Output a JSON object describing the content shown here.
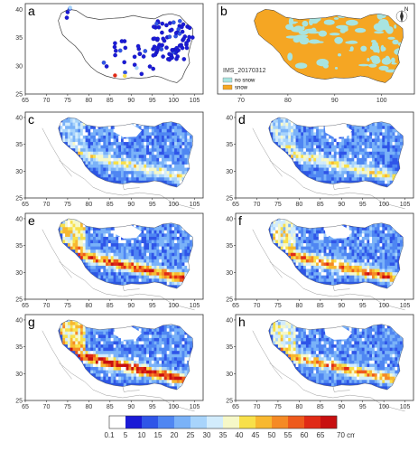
{
  "panels": [
    {
      "id": "a",
      "label": "a",
      "kind": "stations",
      "x_ticks": [
        "65",
        "70",
        "75",
        "80",
        "85",
        "90",
        "95",
        "100",
        "105"
      ],
      "y_ticks": [
        "40",
        "35",
        "30",
        "25"
      ]
    },
    {
      "id": "b",
      "label": "b",
      "kind": "ims",
      "x_ticks": [
        "70",
        "80",
        "90",
        "100"
      ],
      "y_ticks": [],
      "title": "IMS_20170312",
      "legend": [
        {
          "label": "no snow",
          "color": "#a8e4e0"
        },
        {
          "label": "snow",
          "color": "#f5a623"
        }
      ],
      "north": "N"
    },
    {
      "id": "c",
      "label": "c",
      "kind": "depth",
      "x_ticks": [
        "65",
        "70",
        "75",
        "80",
        "85",
        "90",
        "95",
        "100",
        "105"
      ],
      "y_ticks": [
        "40",
        "35",
        "30",
        "25"
      ],
      "intensity": 0.35
    },
    {
      "id": "d",
      "label": "d",
      "kind": "depth",
      "x_ticks": [
        "65",
        "70",
        "75",
        "80",
        "85",
        "90",
        "95",
        "100",
        "105"
      ],
      "y_ticks": [
        "40",
        "35",
        "30",
        "25"
      ],
      "intensity": 0.38
    },
    {
      "id": "e",
      "label": "e",
      "kind": "depth",
      "x_ticks": [
        "65",
        "70",
        "75",
        "80",
        "85",
        "90",
        "95",
        "100",
        "105"
      ],
      "y_ticks": [
        "40",
        "35",
        "30",
        "25"
      ],
      "intensity": 0.75
    },
    {
      "id": "f",
      "label": "f",
      "kind": "depth",
      "x_ticks": [
        "65",
        "70",
        "75",
        "80",
        "85",
        "90",
        "95",
        "100",
        "105"
      ],
      "y_ticks": [
        "40",
        "35",
        "30",
        "25"
      ],
      "intensity": 0.65
    },
    {
      "id": "g",
      "label": "g",
      "kind": "depth",
      "x_ticks": [
        "65",
        "70",
        "75",
        "80",
        "85",
        "90",
        "95",
        "100",
        "105"
      ],
      "y_ticks": [
        "40",
        "35",
        "30",
        "25"
      ],
      "intensity": 0.85
    },
    {
      "id": "h",
      "label": "h",
      "kind": "depth",
      "x_ticks": [
        "65",
        "70",
        "75",
        "80",
        "85",
        "90",
        "95",
        "100",
        "105"
      ],
      "y_ticks": [
        "40",
        "35",
        "30",
        "25"
      ],
      "intensity": 0.6
    }
  ],
  "colorbar": {
    "labels": [
      "0.1",
      "5",
      "10",
      "15",
      "20",
      "25",
      "30",
      "35",
      "40",
      "45",
      "50",
      "55",
      "60",
      "65",
      "70 cm"
    ],
    "colors": [
      "#ffffff",
      "#1a1ad6",
      "#2f55e8",
      "#4f86f2",
      "#7ab2f8",
      "#a8d4fb",
      "#d2ecfc",
      "#f6f8c8",
      "#f8e04a",
      "#f8b830",
      "#f58a25",
      "#ee5a1c",
      "#e02a16",
      "#c80f10"
    ]
  },
  "palette": {
    "blue": "#2b56df",
    "ims_snow": "#f5a623",
    "ims_nosnow": "#a8e4e0"
  }
}
